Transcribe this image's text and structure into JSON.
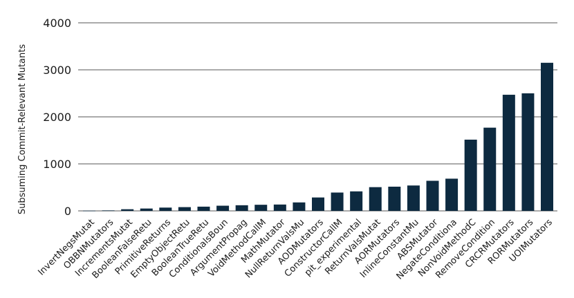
{
  "chart_data": {
    "type": "bar",
    "title": "",
    "xlabel": "",
    "ylabel": "Subsuming Commit-Relevant Mutants",
    "ylim": [
      0,
      4000
    ],
    "yticks": [
      0,
      1000,
      2000,
      3000,
      4000
    ],
    "grid": true,
    "bar_color": "#0d2a40",
    "categories": [
      "InvertNegsMutat",
      "OBBNMutators",
      "IncrementsMutat",
      "BooleanFalseRetu",
      "PrimitiveReturns",
      "EmptyObjectRetu",
      "BooleanTrueRetu",
      "ConditionalsBoun",
      "ArgumentPropag",
      "VoidMethodCallM",
      "MathMutator",
      "NullReturnValsMu",
      "AODMutators",
      "ConstructorCallM",
      "pit_experimental",
      "ReturnValsMutat",
      "AORMutators",
      "InlineConstantMu",
      "ABSMutator",
      "NegateConditiona",
      "NonVoidMethodC",
      "RemoveCondition",
      "CRCRMutators",
      "RORMutators",
      "UOIMutators"
    ],
    "values": [
      5,
      10,
      35,
      50,
      70,
      80,
      90,
      110,
      120,
      130,
      135,
      180,
      285,
      390,
      415,
      505,
      515,
      540,
      640,
      685,
      1515,
      1770,
      2470,
      2500,
      3150
    ]
  }
}
